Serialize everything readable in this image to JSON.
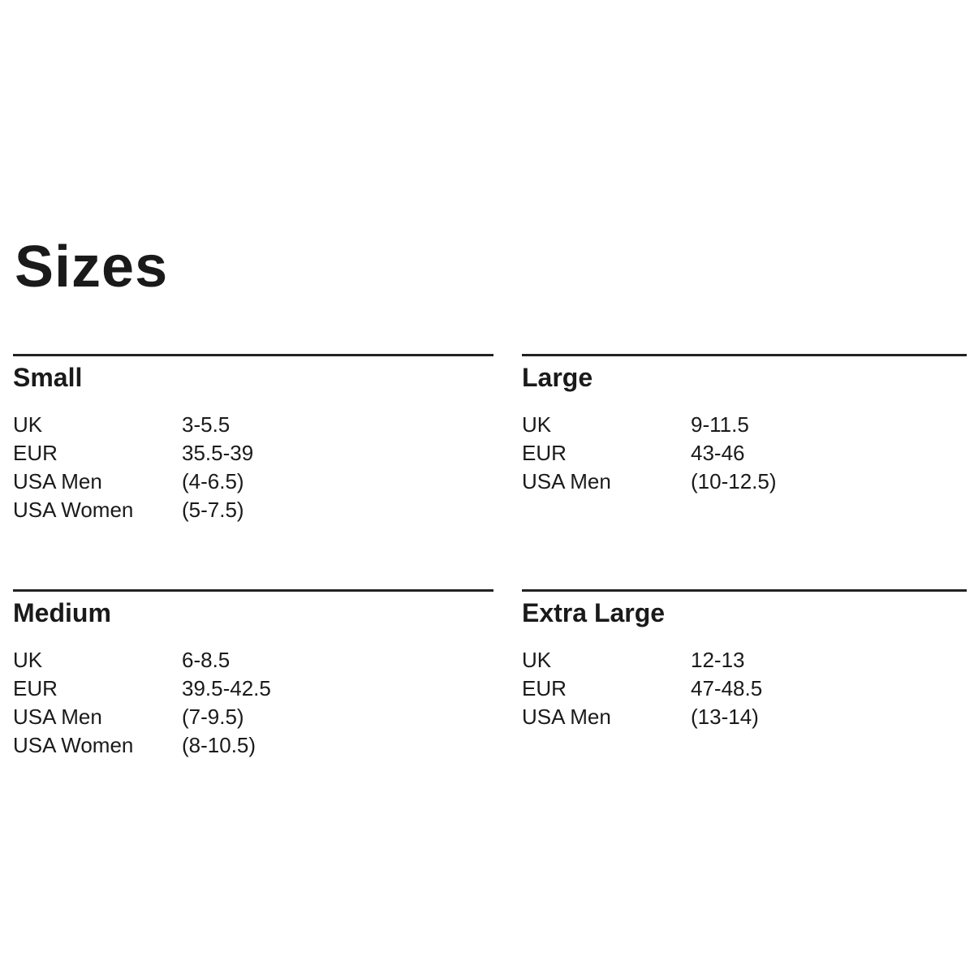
{
  "title": "Sizes",
  "sections": [
    {
      "name": "Small",
      "rows": [
        [
          "UK",
          "3-5.5"
        ],
        [
          "EUR",
          "35.5-39"
        ],
        [
          "USA Men",
          "(4-6.5)"
        ],
        [
          "USA Women",
          "(5-7.5)"
        ]
      ]
    },
    {
      "name": "Large",
      "rows": [
        [
          "UK",
          "9-11.5"
        ],
        [
          "EUR",
          "43-46"
        ],
        [
          "USA Men",
          "(10-12.5)"
        ]
      ]
    },
    {
      "name": "Medium",
      "rows": [
        [
          "UK",
          "6-8.5"
        ],
        [
          "EUR",
          "39.5-42.5"
        ],
        [
          "USA Men",
          "(7-9.5)"
        ],
        [
          "USA Women",
          "(8-10.5)"
        ]
      ]
    },
    {
      "name": "Extra Large",
      "rows": [
        [
          "UK",
          "12-13"
        ],
        [
          "EUR",
          "47-48.5"
        ],
        [
          "USA Men",
          "(13-14)"
        ]
      ]
    }
  ]
}
